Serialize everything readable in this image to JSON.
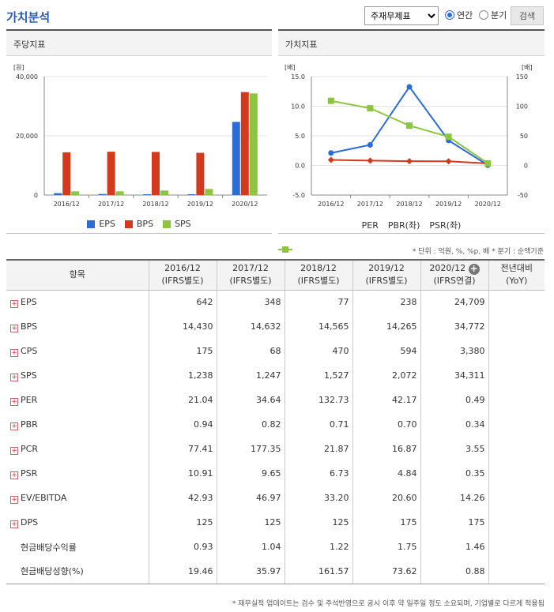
{
  "header": {
    "title": "가치분석",
    "select_value": "주재무제표",
    "radio_annual": "연간",
    "radio_quarter": "분기",
    "search_label": "검색"
  },
  "per_share_chart": {
    "panel_title": "주당지표",
    "unit": "[원]",
    "chart_data": {
      "type": "bar",
      "categories": [
        "2016/12",
        "2017/12",
        "2018/12",
        "2019/12",
        "2020/12"
      ],
      "ylim": [
        0,
        40000
      ],
      "yticks": [
        "40,000",
        "20,000",
        "0"
      ],
      "series": [
        {
          "name": "EPS",
          "color": "#2a6dd9",
          "values": [
            642,
            348,
            77,
            238,
            24709
          ]
        },
        {
          "name": "BPS",
          "color": "#d23a1e",
          "values": [
            14430,
            14632,
            14565,
            14265,
            34772
          ]
        },
        {
          "name": "SPS",
          "color": "#8cc63e",
          "values": [
            1238,
            1247,
            1527,
            2072,
            34311
          ]
        }
      ]
    }
  },
  "valuation_chart": {
    "panel_title": "가치지표",
    "left_unit": "[배]",
    "right_unit": "[배]",
    "chart_data": {
      "type": "line",
      "categories": [
        "2016/12",
        "2017/12",
        "2018/12",
        "2019/12",
        "2020/12"
      ],
      "left_ylim": [
        -5,
        15
      ],
      "left_yticks": [
        "15.0",
        "10.0",
        "5.0",
        "0.0",
        "-5.0"
      ],
      "right_ylim": [
        -50,
        150
      ],
      "right_yticks": [
        "150",
        "100",
        "50",
        "0",
        "-50"
      ],
      "series": [
        {
          "name": "PER",
          "color": "#2a6dd9",
          "axis": "right",
          "marker": "circle",
          "values": [
            21.04,
            34.64,
            132.73,
            42.17,
            0.49
          ]
        },
        {
          "name": "PBR(좌)",
          "color": "#d23a1e",
          "axis": "left",
          "marker": "diamond",
          "values": [
            0.94,
            0.82,
            0.71,
            0.7,
            0.34
          ]
        },
        {
          "name": "PSR(좌)",
          "color": "#8cc63e",
          "axis": "left",
          "marker": "square",
          "values": [
            10.91,
            9.65,
            6.73,
            4.84,
            0.35
          ]
        }
      ]
    }
  },
  "unit_note": "* 단위 : 억원, %, %p, 배    * 분기 : 순액기준",
  "table": {
    "headers": [
      {
        "l1": "항목",
        "l2": ""
      },
      {
        "l1": "2016/12",
        "l2": "(IFRS별도)"
      },
      {
        "l1": "2017/12",
        "l2": "(IFRS별도)"
      },
      {
        "l1": "2018/12",
        "l2": "(IFRS별도)"
      },
      {
        "l1": "2019/12",
        "l2": "(IFRS별도)"
      },
      {
        "l1": "2020/12",
        "l2": "(IFRS연결)"
      },
      {
        "l1": "전년대비",
        "l2": "(YoY)"
      }
    ],
    "rows": [
      {
        "label": "EPS",
        "expand": true,
        "values": [
          "642",
          "348",
          "77",
          "238",
          "24,709",
          ""
        ]
      },
      {
        "label": "BPS",
        "expand": true,
        "values": [
          "14,430",
          "14,632",
          "14,565",
          "14,265",
          "34,772",
          ""
        ]
      },
      {
        "label": "CPS",
        "expand": true,
        "values": [
          "175",
          "68",
          "470",
          "594",
          "3,380",
          ""
        ]
      },
      {
        "label": "SPS",
        "expand": true,
        "values": [
          "1,238",
          "1,247",
          "1,527",
          "2,072",
          "34,311",
          ""
        ]
      },
      {
        "label": "PER",
        "expand": true,
        "values": [
          "21.04",
          "34.64",
          "132.73",
          "42.17",
          "0.49",
          ""
        ]
      },
      {
        "label": "PBR",
        "expand": true,
        "values": [
          "0.94",
          "0.82",
          "0.71",
          "0.70",
          "0.34",
          ""
        ]
      },
      {
        "label": "PCR",
        "expand": true,
        "values": [
          "77.41",
          "177.35",
          "21.87",
          "16.87",
          "3.55",
          ""
        ]
      },
      {
        "label": "PSR",
        "expand": true,
        "values": [
          "10.91",
          "9.65",
          "6.73",
          "4.84",
          "0.35",
          ""
        ]
      },
      {
        "label": "EV/EBITDA",
        "expand": true,
        "values": [
          "42.93",
          "46.97",
          "33.20",
          "20.60",
          "14.26",
          ""
        ]
      },
      {
        "label": "DPS",
        "expand": true,
        "values": [
          "125",
          "125",
          "125",
          "175",
          "175",
          ""
        ]
      },
      {
        "label": "현금배당수익률",
        "expand": false,
        "values": [
          "0.93",
          "1.04",
          "1.22",
          "1.75",
          "1.46",
          ""
        ]
      },
      {
        "label": "현금배당성향(%)",
        "expand": false,
        "values": [
          "19.46",
          "35.97",
          "161.57",
          "73.62",
          "0.88",
          ""
        ]
      }
    ]
  },
  "footnote": "* 재무실적 업데이트는 검수 및 주석반영으로 공시 이후 약 일주일 정도 소요되며, 기업별로 다르게 적용됨"
}
